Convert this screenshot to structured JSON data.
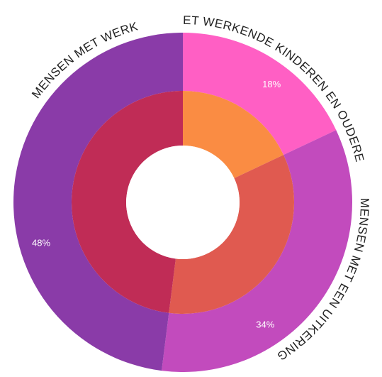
{
  "chart_data": {
    "type": "pie",
    "style": "double donut (sunburst)",
    "categories": [
      "NIET WERKENDE KINDEREN EN OUDEREN",
      "MENSEN MET EEN UITKERING",
      "MENSEN MET WERK"
    ],
    "values": [
      18,
      34,
      48
    ],
    "value_labels": [
      "18%",
      "34%",
      "48%"
    ],
    "outer_colors": [
      "#ff5fc4",
      "#c24bbd",
      "#8a3ba8"
    ],
    "inner_colors": [
      "#fa8c43",
      "#e05a50",
      "#c02c56"
    ],
    "start_angle_deg": 0,
    "direction": "clockwise",
    "legend": "none",
    "grid": false
  }
}
